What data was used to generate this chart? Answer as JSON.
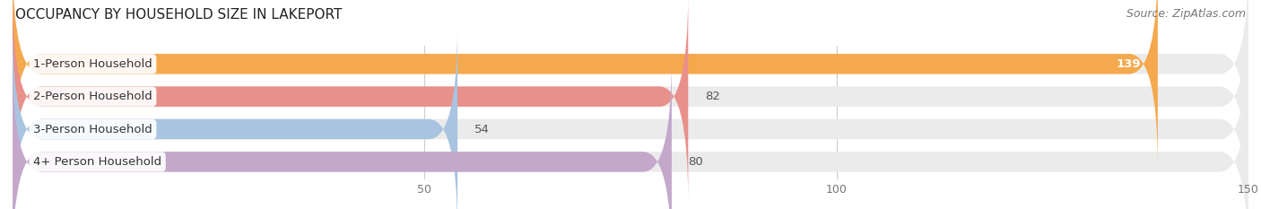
{
  "title": "OCCUPANCY BY HOUSEHOLD SIZE IN LAKEPORT",
  "source": "Source: ZipAtlas.com",
  "categories": [
    "1-Person Household",
    "2-Person Household",
    "3-Person Household",
    "4+ Person Household"
  ],
  "values": [
    139,
    82,
    54,
    80
  ],
  "bar_colors": [
    "#F5A94E",
    "#E8908A",
    "#A8C4E0",
    "#C4A8CC"
  ],
  "bar_bg_color": "#EBEBEB",
  "value_inside": [
    true,
    false,
    false,
    false
  ],
  "value_inside_color": "#FFFFFF",
  "value_outside_color": "#555555",
  "xlim": [
    0,
    150
  ],
  "xticks": [
    50,
    100,
    150
  ],
  "figsize": [
    14.06,
    2.33
  ],
  "dpi": 100,
  "title_fontsize": 11,
  "source_fontsize": 9,
  "label_fontsize": 9.5,
  "value_fontsize": 9.5,
  "tick_fontsize": 9,
  "bar_height": 0.62,
  "bar_spacing": 1.0,
  "background_color": "#FFFFFF",
  "grid_color": "#CCCCCC",
  "rounding_size": 3.5
}
